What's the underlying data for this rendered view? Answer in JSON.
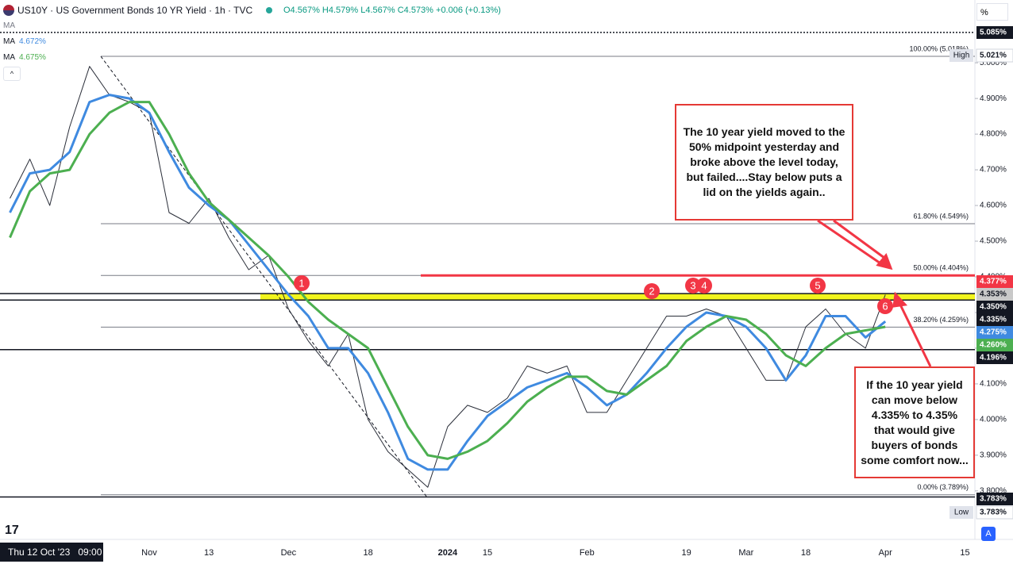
{
  "header": {
    "symbol": "US10Y · US Government Bonds 10 YR Yield · 1h · TVC",
    "ohlc": "O4.567% H4.579% L4.567% C4.573% +0.006 (+0.13%)",
    "hidden_ma": "MA",
    "ma_values": [
      "4.672%",
      "4.675%"
    ]
  },
  "chart_data": {
    "type": "line",
    "categories": [
      null,
      null,
      null,
      null,
      null,
      null,
      null,
      "Nov",
      null,
      null,
      "13",
      null,
      null,
      null,
      "Dec",
      null,
      null,
      null,
      "18",
      null,
      null,
      null,
      "2024",
      null,
      "15",
      null,
      null,
      null,
      null,
      "Feb",
      null,
      null,
      null,
      null,
      "19",
      null,
      null,
      "Mar",
      null,
      null,
      "18",
      null,
      null,
      null,
      "Apr",
      null,
      null,
      null,
      "15"
    ],
    "series": [
      {
        "name": "US10Y",
        "color": "#2a2e39",
        "values": [
          4.62,
          4.73,
          4.6,
          4.82,
          4.99,
          4.91,
          4.89,
          4.86,
          4.58,
          4.55,
          4.62,
          4.51,
          4.42,
          4.46,
          4.31,
          4.22,
          4.15,
          4.24,
          4.0,
          3.91,
          3.86,
          3.81,
          3.98,
          4.04,
          4.02,
          4.06,
          4.15,
          4.13,
          4.15,
          4.02,
          4.02,
          4.11,
          4.2,
          4.29,
          4.29,
          4.31,
          4.29,
          4.2,
          4.11,
          4.11,
          4.26,
          4.31,
          4.24,
          4.2,
          4.35,
          null,
          null,
          null,
          null
        ]
      },
      {
        "name": "MA",
        "color": "#3f8ae0",
        "values": [
          4.58,
          4.69,
          4.7,
          4.75,
          4.89,
          4.91,
          4.9,
          4.86,
          4.75,
          4.65,
          4.6,
          4.56,
          4.49,
          4.42,
          4.35,
          4.29,
          4.2,
          4.2,
          4.13,
          4.02,
          3.89,
          3.86,
          3.86,
          3.94,
          4.01,
          4.05,
          4.09,
          4.11,
          4.13,
          4.09,
          4.04,
          4.07,
          4.13,
          4.2,
          4.26,
          4.3,
          4.29,
          4.26,
          4.2,
          4.11,
          4.18,
          4.29,
          4.29,
          4.23,
          4.275,
          null,
          null,
          null,
          null
        ]
      },
      {
        "name": "MA",
        "color": "#4caf50",
        "values": [
          4.51,
          4.64,
          4.69,
          4.7,
          4.8,
          4.86,
          4.89,
          4.89,
          4.8,
          4.69,
          4.61,
          4.56,
          4.51,
          4.46,
          4.4,
          4.33,
          4.28,
          4.24,
          4.2,
          4.09,
          3.98,
          3.9,
          3.89,
          3.91,
          3.94,
          3.99,
          4.05,
          4.09,
          4.12,
          4.12,
          4.08,
          4.07,
          4.11,
          4.15,
          4.22,
          4.26,
          4.29,
          4.28,
          4.24,
          4.18,
          4.15,
          4.2,
          4.24,
          4.25,
          4.26,
          null,
          null,
          null,
          null
        ]
      }
    ],
    "ylim": [
      3.664,
      5.176
    ],
    "yticks": [
      {
        "value": 5.0,
        "label": "5.000%"
      },
      {
        "value": 4.9,
        "label": "4.900%"
      },
      {
        "value": 4.8,
        "label": "4.800%"
      },
      {
        "value": 4.7,
        "label": "4.700%"
      },
      {
        "value": 4.6,
        "label": "4.600%"
      },
      {
        "value": 4.5,
        "label": "4.500%"
      },
      {
        "value": 4.4,
        "label": "4.400%"
      },
      {
        "value": 4.3,
        "label": "4.300%"
      },
      {
        "value": 4.2,
        "label": "4.200%"
      },
      {
        "value": 4.1,
        "label": "4.100%"
      },
      {
        "value": 4.0,
        "label": "4.000%"
      },
      {
        "value": 3.9,
        "label": "3.900%"
      },
      {
        "value": 3.8,
        "label": "3.800%"
      }
    ],
    "grid": false,
    "fib_levels": [
      {
        "value": 5.018,
        "label": "100.00% (5.018%)"
      },
      {
        "value": 4.549,
        "label": "61.80% (4.549%)"
      },
      {
        "value": 4.404,
        "label": "50.00% (4.404%)"
      },
      {
        "value": 4.259,
        "label": "38.20% (4.259%)"
      },
      {
        "value": 3.789,
        "label": "0.00% (3.789%)"
      }
    ],
    "h_lines": [
      5.085,
      4.353,
      4.335,
      4.196,
      3.783
    ],
    "red_line": 4.404,
    "band": [
      4.335,
      4.353
    ],
    "price_labels": [
      {
        "text": "5.085%",
        "bg": "#131722",
        "fg": "#ffffff"
      },
      {
        "text": "5.021%",
        "bg": "#ffffff",
        "fg": "#131722",
        "tag": "High"
      },
      {
        "text": "4.377%",
        "bg": "#f23645",
        "fg": "#ffffff"
      },
      {
        "text": "4.353%",
        "bg": "#c9c9c9",
        "fg": "#131722"
      },
      {
        "text": "4.350%",
        "bg": "#131722",
        "fg": "#ffffff"
      },
      {
        "text": "4.335%",
        "bg": "#131722",
        "fg": "#ffffff"
      },
      {
        "text": "4.275%",
        "bg": "#3f8ae0",
        "fg": "#ffffff"
      },
      {
        "text": "4.260%",
        "bg": "#4caf50",
        "fg": "#ffffff"
      },
      {
        "text": "4.196%",
        "bg": "#131722",
        "fg": "#ffffff"
      },
      {
        "text": "3.783%",
        "bg": "#131722",
        "fg": "#ffffff"
      },
      {
        "text": "3.783%",
        "bg": "#ffffff",
        "fg": "#131722",
        "tag": "Low"
      }
    ],
    "markers": [
      "1",
      "2",
      "3",
      "4",
      "5",
      "6"
    ],
    "annotations": [
      "The 10 year yield moved to the 50% midpoint yesterday and broke above the level today, but failed....Stay below puts a lid on the yields again..",
      "If the 10 year yield can move below 4.335% to 4.35% that would give buyers of bonds some comfort now..."
    ]
  },
  "footer": {
    "date": "Thu 12 Oct '23",
    "time": "09:00",
    "scale": "%",
    "auto": "A"
  }
}
